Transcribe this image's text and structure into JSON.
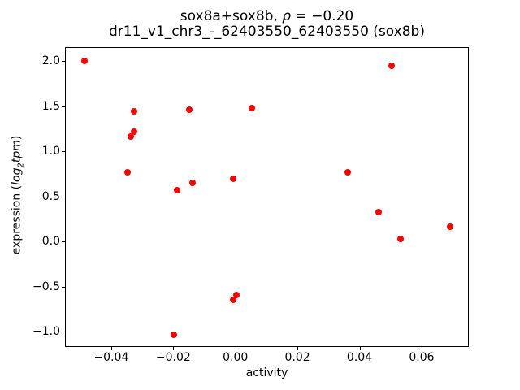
{
  "title": {
    "line1_prefix": "sox8a+sox8b, ",
    "line1_rho": "ρ",
    "line1_suffix": " = −0.20",
    "line2": "dr11_v1_chr3_-_62403550_62403550 (sox8b)"
  },
  "axes": {
    "xlabel": "activity",
    "ylabel_parts": {
      "prefix": "expression (",
      "log_word": "log",
      "subscript": "2",
      "tpm_word": "tpm",
      "suffix": ")"
    }
  },
  "chart_data": {
    "type": "scatter",
    "title": "sox8a+sox8b, ρ = −0.20",
    "subtitle": "dr11_v1_chr3_-_62403550_62403550 (sox8b)",
    "correlation_rho": -0.2,
    "xlabel": "activity",
    "ylabel": "expression (log2 tpm)",
    "marker_color": "#ff0000",
    "marker_size_px": 8,
    "grid": false,
    "legend": null,
    "xlim": [
      -0.0549,
      0.0752
    ],
    "ylim": [
      -1.168,
      2.156
    ],
    "x_ticks": [
      -0.04,
      -0.02,
      0,
      0.02,
      0.04,
      0.06
    ],
    "x_tick_labels": [
      "−0.04",
      "−0.02",
      "0.00",
      "0.02",
      "0.04",
      "0.06"
    ],
    "y_ticks": [
      2.0,
      1.5,
      1.0,
      0.5,
      0.0,
      -0.5,
      -1.0
    ],
    "y_tick_labels": [
      "2.0",
      "1.5",
      "1.0",
      "0.5",
      "0.0",
      "−0.5",
      "−1.0"
    ],
    "points": [
      {
        "x": -0.049,
        "y": 2.01
      },
      {
        "x": -0.035,
        "y": 0.78
      },
      {
        "x": -0.034,
        "y": 1.17
      },
      {
        "x": -0.033,
        "y": 1.23
      },
      {
        "x": -0.033,
        "y": 1.45
      },
      {
        "x": -0.02,
        "y": -1.02
      },
      {
        "x": -0.019,
        "y": 0.58
      },
      {
        "x": -0.015,
        "y": 1.47
      },
      {
        "x": -0.014,
        "y": 0.66
      },
      {
        "x": -0.001,
        "y": 0.71
      },
      {
        "x": -0.001,
        "y": -0.64
      },
      {
        "x": 0.0,
        "y": -0.58
      },
      {
        "x": 0.005,
        "y": 1.49
      },
      {
        "x": 0.036,
        "y": 0.78
      },
      {
        "x": 0.046,
        "y": 0.34
      },
      {
        "x": 0.05,
        "y": 1.96
      },
      {
        "x": 0.053,
        "y": 0.04
      },
      {
        "x": 0.069,
        "y": 0.17
      }
    ]
  }
}
